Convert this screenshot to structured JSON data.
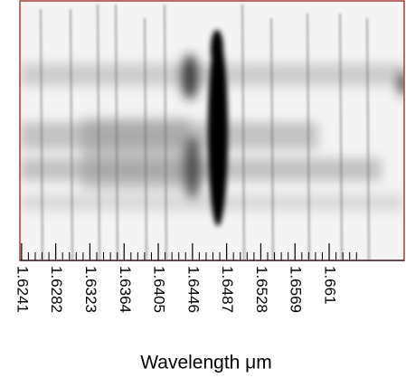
{
  "chart_data": {
    "type": "image",
    "xlabel": "Wavelength μm",
    "xlim": [
      1.6239,
      1.67
    ],
    "xticks": [
      1.6241,
      1.6282,
      1.6323,
      1.6364,
      1.6405,
      1.6446,
      1.6487,
      1.6528,
      1.6569,
      1.661
    ],
    "frame_color": "#a83a3a"
  }
}
